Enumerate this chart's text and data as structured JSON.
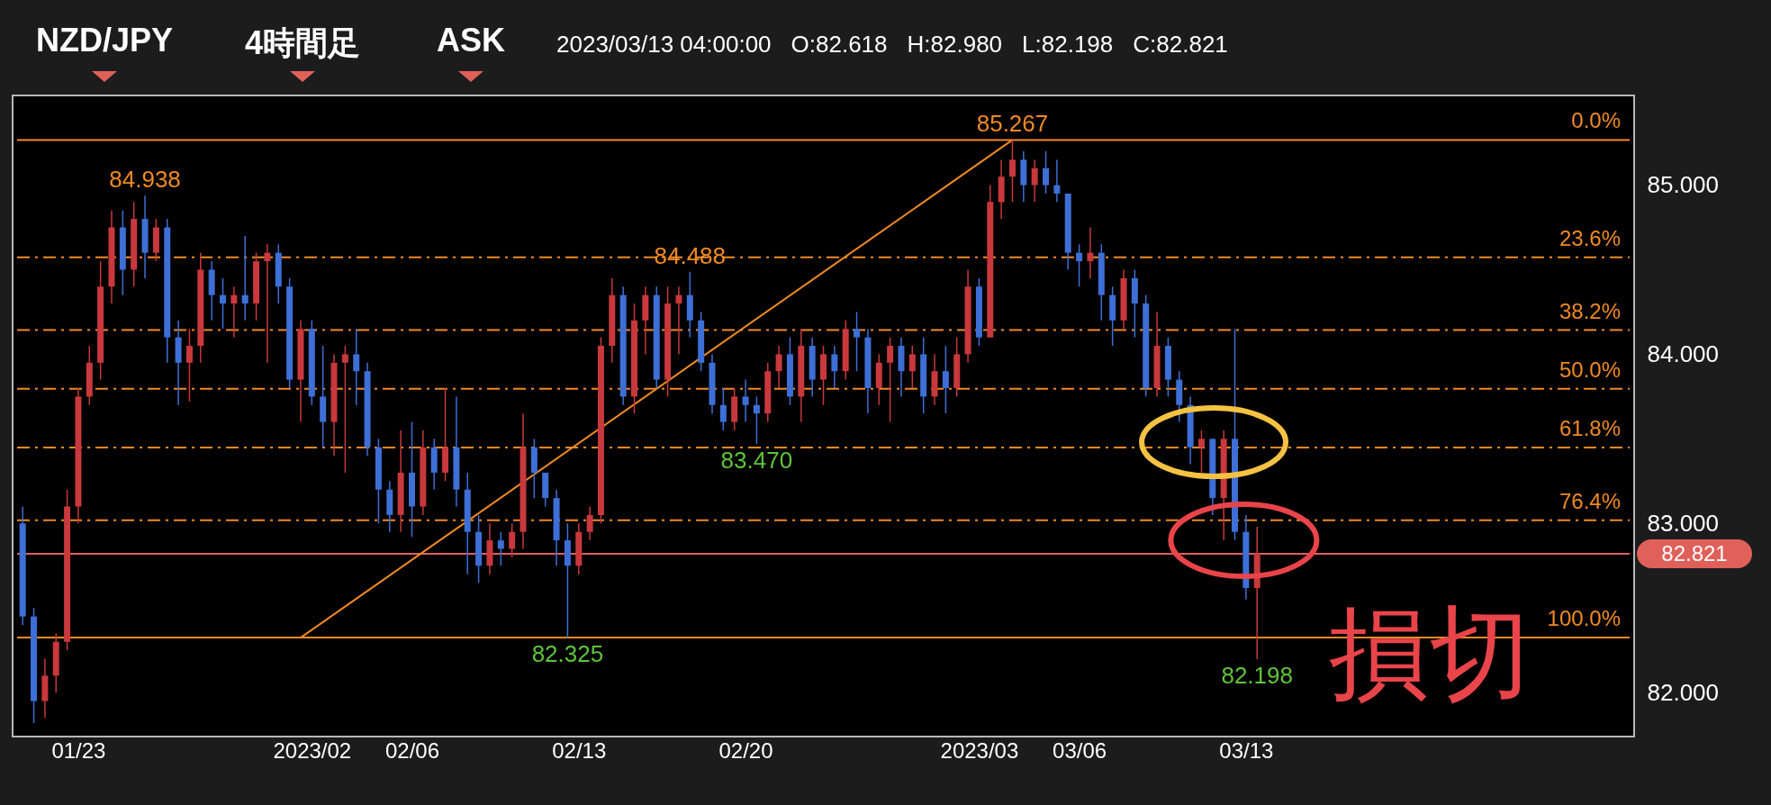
{
  "chart_data": {
    "type": "candlestick",
    "title": "NZD/JPY",
    "annotations": [
      "4時間足",
      "ASK",
      "2023/03/13 04:00:00",
      "O:82.618",
      "H:82.980",
      "L:82.198",
      "C:82.821",
      "0.0%",
      "23.6%",
      "38.2%",
      "50.0%",
      "61.8%",
      "76.4%",
      "100.0%",
      {
        "text": "84.938",
        "y": 84.938
      },
      {
        "text": "85.267",
        "y": 85.267
      },
      {
        "text": "84.488",
        "y": 84.488
      },
      {
        "text": "83.470",
        "y": 83.47
      },
      {
        "text": "82.325",
        "y": 82.325
      },
      {
        "text": "82.198",
        "y": 82.198
      },
      "損切"
    ],
    "categories": [
      null,
      null,
      null,
      null,
      null,
      "01/23",
      null,
      null,
      null,
      null,
      null,
      null,
      null,
      null,
      null,
      null,
      null,
      null,
      null,
      null,
      null,
      null,
      null,
      null,
      null,
      null,
      "2023/02",
      null,
      null,
      null,
      null,
      null,
      null,
      null,
      null,
      "02/06",
      null,
      null,
      null,
      null,
      null,
      null,
      null,
      null,
      null,
      null,
      null,
      null,
      null,
      null,
      "02/13",
      null,
      null,
      null,
      null,
      null,
      null,
      null,
      null,
      null,
      null,
      null,
      null,
      null,
      null,
      "02/20",
      null,
      null,
      null,
      null,
      null,
      null,
      null,
      null,
      null,
      null,
      null,
      null,
      null,
      null,
      null,
      null,
      null,
      null,
      null,
      null,
      "2023/03",
      null,
      null,
      null,
      null,
      null,
      null,
      null,
      null,
      "03/06",
      null,
      null,
      null,
      null,
      null,
      null,
      null,
      null,
      null,
      null,
      null,
      null,
      null,
      null,
      "03/13",
      null,
      null,
      null,
      null,
      null,
      null,
      null,
      null,
      null,
      null,
      null,
      null,
      null,
      null,
      null,
      null,
      null,
      null,
      null,
      null,
      null,
      null,
      null,
      null,
      null,
      null,
      null,
      null,
      null,
      null,
      null,
      null,
      null,
      null
    ],
    "ohlc": [
      [
        83.0,
        83.1,
        82.4,
        82.45
      ],
      [
        82.45,
        82.5,
        81.82,
        81.95
      ],
      [
        81.95,
        82.2,
        81.85,
        82.1
      ],
      [
        82.1,
        82.35,
        82.0,
        82.3
      ],
      [
        82.3,
        83.2,
        82.25,
        83.1
      ],
      [
        83.1,
        83.8,
        83.0,
        83.75
      ],
      [
        83.75,
        84.05,
        83.7,
        83.95
      ],
      [
        83.95,
        84.55,
        83.85,
        84.4
      ],
      [
        84.4,
        84.85,
        84.3,
        84.75
      ],
      [
        84.75,
        84.85,
        84.35,
        84.5
      ],
      [
        84.5,
        84.9,
        84.4,
        84.8
      ],
      [
        84.8,
        84.938,
        84.45,
        84.6
      ],
      [
        84.6,
        84.8,
        84.55,
        84.75
      ],
      [
        84.75,
        84.8,
        83.95,
        84.1
      ],
      [
        84.1,
        84.2,
        83.7,
        83.95
      ],
      [
        83.95,
        84.15,
        83.72,
        84.05
      ],
      [
        84.05,
        84.6,
        83.95,
        84.5
      ],
      [
        84.5,
        84.55,
        84.2,
        84.35
      ],
      [
        84.35,
        84.45,
        84.15,
        84.3
      ],
      [
        84.3,
        84.4,
        84.1,
        84.35
      ],
      [
        84.35,
        84.7,
        84.2,
        84.3
      ],
      [
        84.3,
        84.6,
        84.2,
        84.55
      ],
      [
        84.55,
        84.65,
        83.95,
        84.6
      ],
      [
        84.6,
        84.65,
        84.3,
        84.4
      ],
      [
        84.4,
        84.45,
        83.8,
        83.85
      ],
      [
        83.85,
        84.2,
        83.6,
        84.15
      ],
      [
        84.15,
        84.2,
        83.7,
        83.75
      ],
      [
        83.75,
        84.05,
        83.45,
        83.6
      ],
      [
        83.6,
        84.0,
        83.4,
        83.95
      ],
      [
        83.95,
        84.05,
        83.3,
        84.0
      ],
      [
        84.0,
        84.15,
        83.7,
        83.9
      ],
      [
        83.9,
        83.95,
        83.4,
        83.45
      ],
      [
        83.45,
        83.5,
        83.0,
        83.2
      ],
      [
        83.2,
        83.25,
        82.95,
        83.05
      ],
      [
        83.05,
        83.55,
        82.95,
        83.3
      ],
      [
        83.3,
        83.6,
        82.92,
        83.1
      ],
      [
        83.1,
        83.55,
        83.05,
        83.45
      ],
      [
        83.45,
        83.5,
        83.2,
        83.3
      ],
      [
        83.3,
        83.8,
        83.25,
        83.45
      ],
      [
        83.45,
        83.75,
        83.1,
        83.2
      ],
      [
        83.2,
        83.3,
        82.7,
        82.95
      ],
      [
        82.95,
        83.05,
        82.65,
        82.75
      ],
      [
        82.75,
        83.0,
        82.7,
        82.9
      ],
      [
        82.9,
        82.95,
        82.75,
        82.85
      ],
      [
        82.85,
        83.0,
        82.8,
        82.95
      ],
      [
        82.95,
        83.65,
        82.85,
        83.45
      ],
      [
        83.45,
        83.5,
        83.15,
        83.3
      ],
      [
        83.3,
        83.3,
        83.1,
        83.15
      ],
      [
        83.15,
        83.2,
        82.75,
        82.9
      ],
      [
        82.9,
        83.0,
        82.325,
        82.75
      ],
      [
        82.75,
        83.0,
        82.7,
        82.95
      ],
      [
        82.95,
        83.1,
        82.9,
        83.05
      ],
      [
        83.05,
        84.1,
        83.0,
        84.05
      ],
      [
        84.05,
        84.45,
        83.95,
        84.35
      ],
      [
        84.35,
        84.4,
        83.7,
        83.75
      ],
      [
        83.75,
        84.3,
        83.65,
        84.2
      ],
      [
        84.2,
        84.4,
        84.0,
        84.35
      ],
      [
        84.35,
        84.4,
        83.8,
        83.85
      ],
      [
        83.85,
        84.4,
        83.75,
        84.3
      ],
      [
        84.3,
        84.4,
        84.0,
        84.35
      ],
      [
        84.35,
        84.488,
        84.1,
        84.2
      ],
      [
        84.2,
        84.25,
        83.9,
        83.95
      ],
      [
        83.95,
        84.0,
        83.65,
        83.7
      ],
      [
        83.7,
        83.8,
        83.55,
        83.6
      ],
      [
        83.6,
        83.8,
        83.55,
        83.75
      ],
      [
        83.75,
        83.85,
        83.6,
        83.7
      ],
      [
        83.7,
        83.75,
        83.47,
        83.65
      ],
      [
        83.65,
        83.95,
        83.6,
        83.9
      ],
      [
        83.9,
        84.05,
        83.8,
        84.0
      ],
      [
        84.0,
        84.1,
        83.7,
        83.75
      ],
      [
        83.75,
        84.15,
        83.6,
        84.05
      ],
      [
        84.05,
        84.1,
        83.75,
        83.85
      ],
      [
        83.85,
        84.05,
        83.7,
        84.0
      ],
      [
        84.0,
        84.05,
        83.8,
        83.9
      ],
      [
        83.9,
        84.2,
        83.85,
        84.15
      ],
      [
        84.15,
        84.25,
        83.9,
        84.1
      ],
      [
        84.1,
        84.15,
        83.65,
        83.8
      ],
      [
        83.8,
        84.0,
        83.7,
        83.95
      ],
      [
        83.95,
        84.1,
        83.6,
        84.05
      ],
      [
        84.05,
        84.1,
        83.75,
        83.9
      ],
      [
        83.9,
        84.05,
        83.8,
        84.0
      ],
      [
        84.0,
        84.1,
        83.65,
        83.75
      ],
      [
        83.75,
        84.0,
        83.7,
        83.9
      ],
      [
        83.9,
        84.05,
        83.65,
        83.8
      ],
      [
        83.8,
        84.1,
        83.75,
        84.0
      ],
      [
        84.0,
        84.5,
        83.95,
        84.4
      ],
      [
        84.4,
        84.45,
        84.05,
        84.1
      ],
      [
        84.1,
        85.0,
        84.1,
        84.9
      ],
      [
        84.9,
        85.15,
        84.8,
        85.05
      ],
      [
        85.05,
        85.267,
        84.9,
        85.15
      ],
      [
        85.15,
        85.2,
        84.9,
        85.0
      ],
      [
        85.0,
        85.15,
        84.9,
        85.1
      ],
      [
        85.1,
        85.2,
        84.95,
        85.0
      ],
      [
        85.0,
        85.15,
        84.9,
        84.95
      ],
      [
        84.95,
        84.95,
        84.5,
        84.6
      ],
      [
        84.6,
        84.65,
        84.4,
        84.55
      ],
      [
        84.55,
        84.75,
        84.45,
        84.6
      ],
      [
        84.6,
        84.65,
        84.2,
        84.35
      ],
      [
        84.35,
        84.4,
        84.05,
        84.2
      ],
      [
        84.2,
        84.5,
        84.15,
        84.45
      ],
      [
        84.45,
        84.5,
        84.1,
        84.3
      ],
      [
        84.3,
        84.35,
        83.75,
        83.8
      ],
      [
        83.8,
        84.25,
        83.75,
        84.05
      ],
      [
        84.05,
        84.1,
        83.75,
        83.85
      ],
      [
        83.85,
        83.9,
        83.6,
        83.7
      ],
      [
        83.7,
        83.75,
        83.35,
        83.45
      ],
      [
        83.45,
        83.55,
        83.3,
        83.5
      ],
      [
        83.5,
        83.5,
        83.05,
        83.15
      ],
      [
        83.15,
        83.55,
        82.9,
        83.5
      ],
      [
        83.5,
        84.15,
        82.9,
        82.95
      ],
      [
        82.95,
        83.05,
        82.55,
        82.618
      ],
      [
        82.618,
        82.98,
        82.198,
        82.821
      ],
      null,
      null,
      null,
      null,
      null,
      null,
      null,
      null,
      null,
      null,
      null,
      null,
      null,
      null,
      null,
      null,
      null,
      null,
      null,
      null,
      null,
      null,
      null,
      null,
      null,
      null,
      null,
      null,
      null,
      null,
      null,
      null,
      null
    ],
    "colors": [
      "#3d6fd6",
      "#3d6fd6",
      "#c8383c",
      "#c8383c",
      "#c8383c",
      "#c8383c",
      "#c8383c",
      "#c8383c",
      "#c8383c",
      "#3d6fd6",
      "#c8383c",
      "#3d6fd6",
      "#c8383c",
      "#3d6fd6",
      "#3d6fd6",
      "#c8383c",
      "#c8383c",
      "#3d6fd6",
      "#3d6fd6",
      "#c8383c",
      "#3d6fd6",
      "#c8383c",
      "#c8383c",
      "#3d6fd6",
      "#3d6fd6",
      "#c8383c",
      "#3d6fd6",
      "#3d6fd6",
      "#c8383c",
      "#c8383c",
      "#3d6fd6",
      "#3d6fd6",
      "#3d6fd6",
      "#3d6fd6",
      "#c8383c",
      "#3d6fd6",
      "#c8383c",
      "#3d6fd6",
      "#c8383c",
      "#3d6fd6",
      "#3d6fd6",
      "#3d6fd6",
      "#c8383c",
      "#3d6fd6",
      "#c8383c",
      "#c8383c",
      "#3d6fd6",
      "#3d6fd6",
      "#3d6fd6",
      "#3d6fd6",
      "#c8383c",
      "#c8383c",
      "#c8383c",
      "#c8383c",
      "#3d6fd6",
      "#c8383c",
      "#c8383c",
      "#3d6fd6",
      "#c8383c",
      "#c8383c",
      "#3d6fd6",
      "#3d6fd6",
      "#3d6fd6",
      "#3d6fd6",
      "#c8383c",
      "#3d6fd6",
      "#3d6fd6",
      "#c8383c",
      "#c8383c",
      "#3d6fd6",
      "#c8383c",
      "#3d6fd6",
      "#c8383c",
      "#3d6fd6",
      "#c8383c",
      "#3d6fd6",
      "#3d6fd6",
      "#c8383c",
      "#c8383c",
      "#3d6fd6",
      "#c8383c",
      "#3d6fd6",
      "#c8383c",
      "#3d6fd6",
      "#c8383c",
      "#c8383c",
      "#3d6fd6",
      "#c8383c",
      "#c8383c",
      "#c8383c",
      "#3d6fd6",
      "#c8383c",
      "#3d6fd6",
      "#3d6fd6",
      "#3d6fd6",
      "#3d6fd6",
      "#c8383c",
      "#3d6fd6",
      "#3d6fd6",
      "#c8383c",
      "#3d6fd6",
      "#3d6fd6",
      "#c8383c",
      "#3d6fd6",
      "#3d6fd6",
      "#3d6fd6",
      "#c8383c",
      "#3d6fd6",
      "#c8383c",
      "#3d6fd6",
      "#3d6fd6",
      "#c8383c",
      null,
      null,
      null,
      null,
      null,
      null,
      null,
      null,
      null,
      null,
      null,
      null,
      null,
      null,
      null,
      null,
      null,
      null,
      null,
      null,
      null,
      null,
      null,
      null,
      null,
      null,
      null,
      null,
      null,
      null,
      null,
      null,
      null
    ],
    "series": [
      {
        "type": "line",
        "color": "#f08a24",
        "values": [
          null,
          null,
          null,
          null,
          null,
          null,
          null,
          null,
          null,
          null,
          null,
          null,
          null,
          null,
          null,
          null,
          null,
          null,
          null,
          null,
          null,
          null,
          null,
          null,
          null,
          82.325,
          null,
          null,
          null,
          null,
          null,
          null,
          null,
          null,
          null,
          null,
          null,
          null,
          null,
          null,
          null,
          null,
          null,
          null,
          null,
          null,
          null,
          null,
          null,
          null,
          null,
          null,
          null,
          null,
          null,
          null,
          null,
          null,
          null,
          null,
          null,
          null,
          null,
          null,
          null,
          null,
          null,
          null,
          null,
          null,
          null,
          null,
          null,
          null,
          null,
          null,
          null,
          null,
          null,
          null,
          null,
          null,
          null,
          null,
          null,
          null,
          null,
          null,
          null,
          85.267,
          null,
          null,
          null,
          null,
          null,
          null,
          null,
          null,
          null,
          null,
          null,
          null,
          null,
          null,
          null,
          null,
          null,
          null,
          null,
          null,
          null,
          null,
          null,
          null,
          null,
          null,
          null,
          null,
          null,
          null,
          null,
          null,
          null,
          null,
          null,
          null,
          null,
          null,
          null,
          null,
          null,
          null,
          null,
          null,
          null,
          null,
          null,
          null,
          null,
          null,
          null,
          null,
          null,
          null,
          null
        ]
      }
    ],
    "ylim": [
      81.74,
      85.53
    ],
    "yticks": [
      {
        "value": 82,
        "label": "82.000"
      },
      {
        "value": 83,
        "label": "83.000"
      },
      {
        "value": 84,
        "label": "84.000"
      },
      {
        "value": 85,
        "label": "85.000"
      }
    ],
    "ref_lines": [
      {
        "axis": "y",
        "value": 85.267,
        "color": "#f08a24",
        "line_style": "solid"
      },
      {
        "axis": "y",
        "value": 84.573,
        "color": "#f08a24",
        "line_style": "dashed"
      },
      {
        "axis": "y",
        "value": 84.143,
        "color": "#f08a24",
        "line_style": "dashed"
      },
      {
        "axis": "y",
        "value": 83.796,
        "color": "#f08a24",
        "line_style": "dashed"
      },
      {
        "axis": "y",
        "value": 83.449,
        "color": "#f08a24",
        "line_style": "dashed"
      },
      {
        "axis": "y",
        "value": 83.019,
        "color": "#f08a24",
        "line_style": "dashed"
      },
      {
        "axis": "y",
        "value": 82.325,
        "color": "#f08a24",
        "line_style": "solid"
      },
      {
        "axis": "y",
        "value": 82.821,
        "label": "82.821",
        "color": "#e0605a",
        "line_style": "solid"
      }
    ]
  }
}
